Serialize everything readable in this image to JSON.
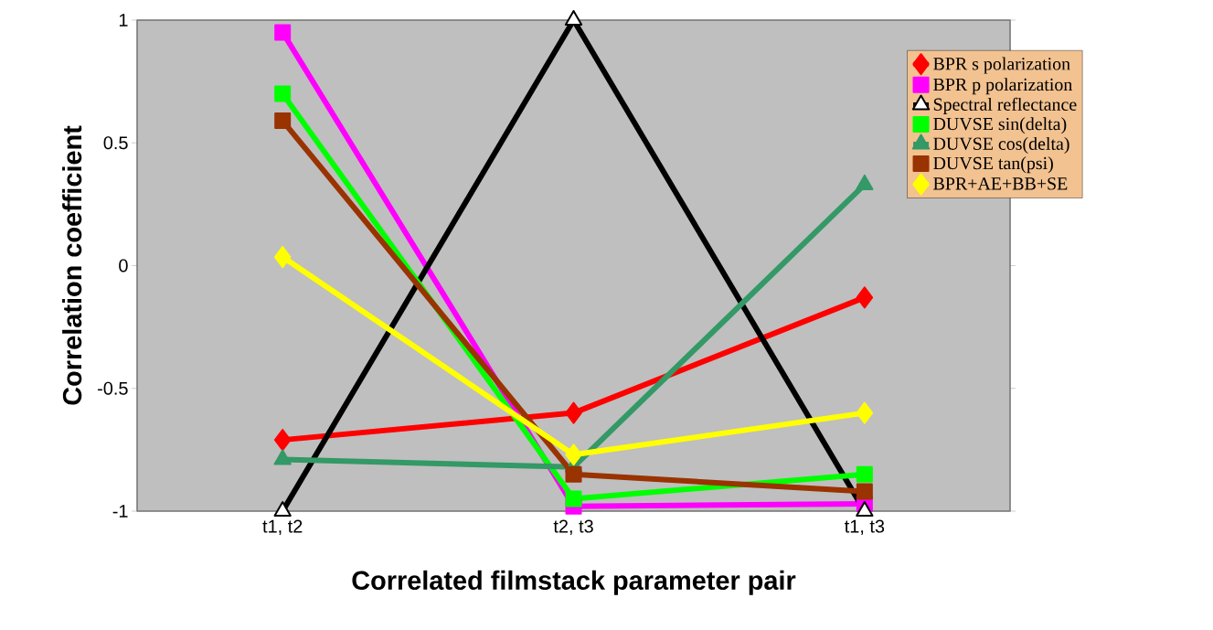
{
  "chart_data": {
    "type": "line",
    "xlabel": "Correlated filmstack parameter pair",
    "ylabel": "Correlation coefficient",
    "categories": [
      "t1, t2",
      "t2, t3",
      "t1, t3"
    ],
    "ylim": [
      -1,
      1
    ],
    "yticks": [
      -1,
      -0.5,
      0,
      0.5,
      1
    ],
    "grid": false,
    "legend": "right",
    "series": [
      {
        "name": "BPR s polarization",
        "color": "#ff0000",
        "marker": "diamond",
        "values": [
          -0.71,
          -0.6,
          -0.13
        ]
      },
      {
        "name": "BPR p polarization",
        "color": "#ff00ff",
        "marker": "square",
        "values": [
          0.95,
          -0.98,
          -0.97
        ]
      },
      {
        "name": "Spectral reflectance",
        "color": "#000000",
        "marker": "triangle",
        "values": [
          -1,
          1,
          -1
        ]
      },
      {
        "name": "DUVSE sin(delta)",
        "color": "#00ff00",
        "marker": "square",
        "values": [
          0.7,
          -0.95,
          -0.85
        ]
      },
      {
        "name": "DUVSE cos(delta)",
        "color": "#339966",
        "marker": "triangle",
        "values": [
          -0.79,
          -0.82,
          0.33
        ]
      },
      {
        "name": "DUVSE tan(psi)",
        "color": "#993300",
        "marker": "square",
        "values": [
          0.59,
          -0.85,
          -0.92
        ]
      },
      {
        "name": "BPR+AE+BB+SE",
        "color": "#ffff00",
        "marker": "diamond",
        "values": [
          0.035,
          -0.77,
          -0.6
        ]
      }
    ]
  }
}
